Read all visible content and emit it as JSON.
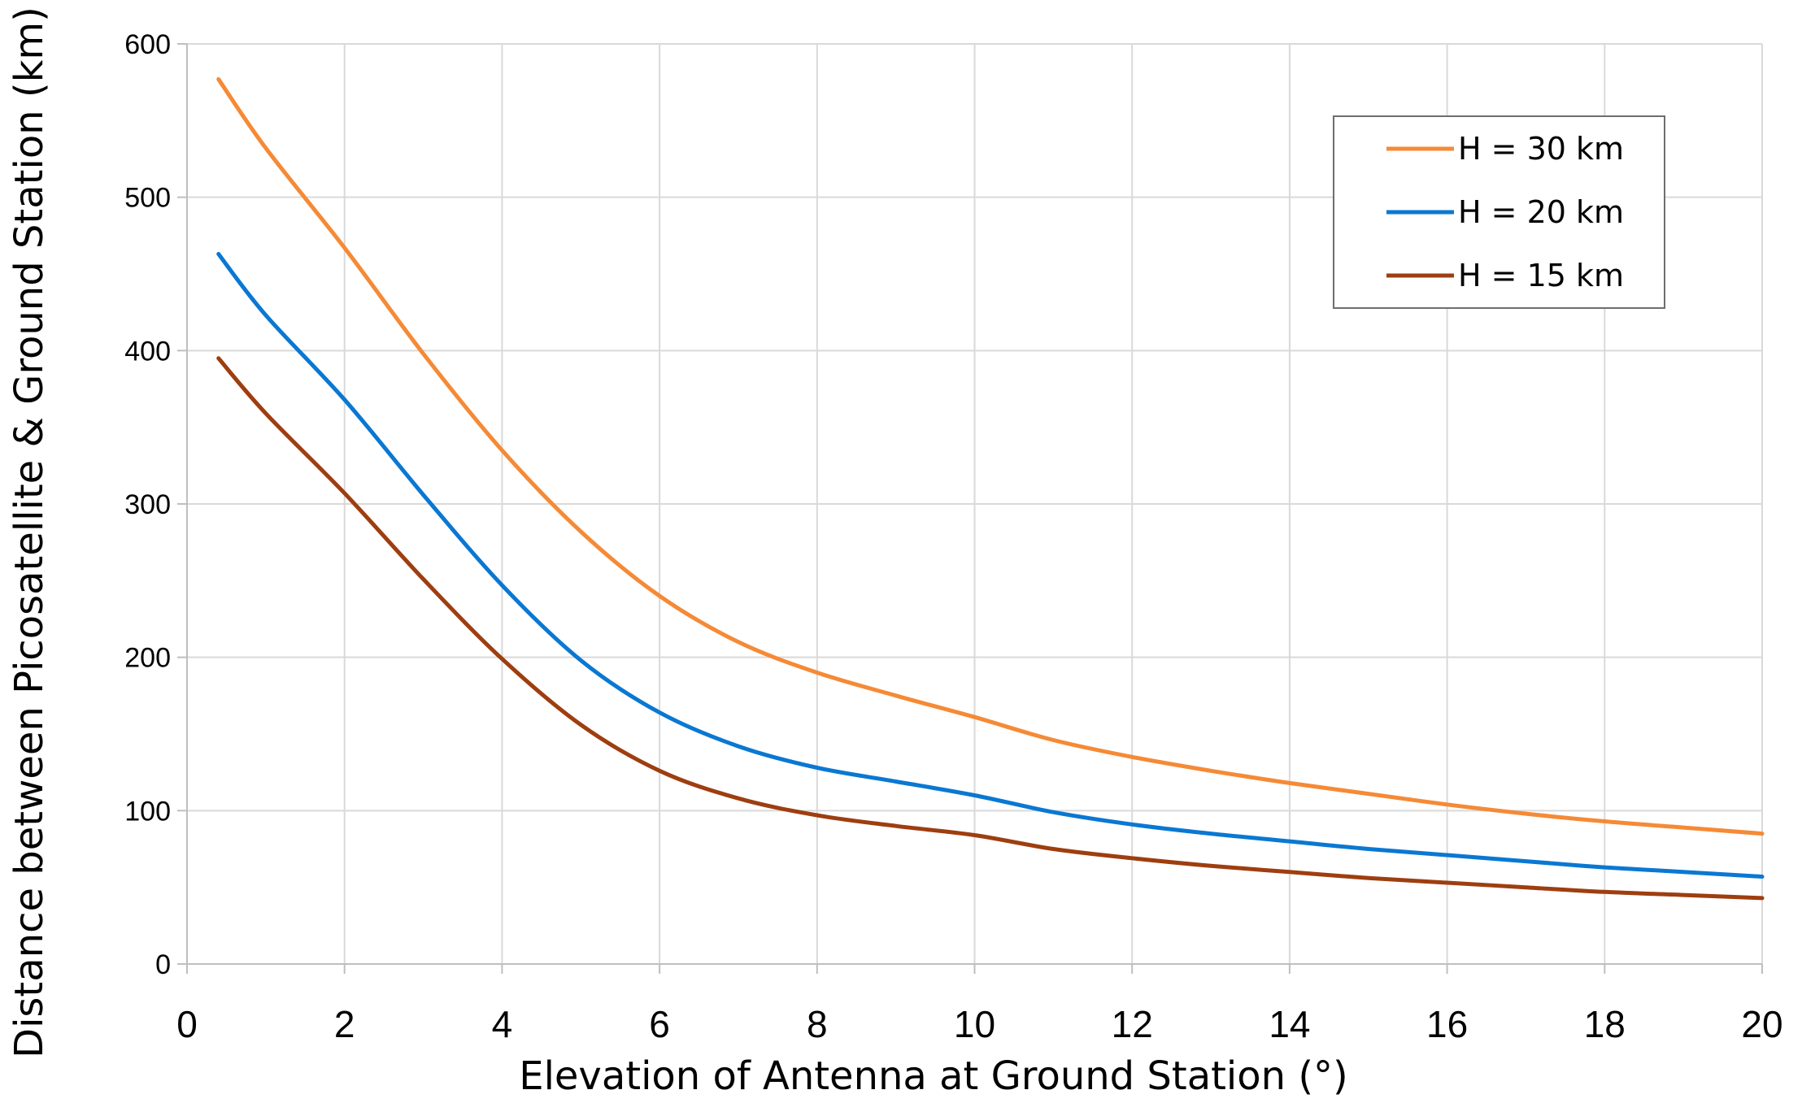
{
  "chart_data": {
    "type": "line",
    "title": "",
    "xlabel": "Elevation of Antenna at Ground Station (°)",
    "ylabel": "Distance between Picosatellite & Ground Station (km)",
    "xlim": [
      0,
      20
    ],
    "ylim": [
      0,
      600
    ],
    "xticks": [
      0,
      2,
      4,
      6,
      8,
      10,
      12,
      14,
      16,
      18,
      20
    ],
    "yticks": [
      0,
      100,
      200,
      300,
      400,
      500,
      600
    ],
    "grid": true,
    "legend_position": "top-right",
    "x": [
      0.4,
      1,
      2,
      3,
      4,
      5,
      6,
      7,
      8,
      9,
      10,
      11,
      12,
      13,
      14,
      15,
      16,
      17,
      18,
      19,
      20
    ],
    "series": [
      {
        "name": "H = 30 km",
        "color": "#f58a36",
        "values": [
          577,
          532,
          467,
          398,
          335,
          282,
          240,
          210,
          190,
          175,
          161,
          146,
          135,
          126,
          118,
          111,
          104,
          98,
          93,
          89,
          85
        ]
      },
      {
        "name": "H = 20 km",
        "color": "#0a78d2",
        "values": [
          463,
          423,
          368,
          306,
          247,
          198,
          164,
          142,
          128,
          119,
          110,
          99,
          91,
          85,
          80,
          75,
          71,
          67,
          63,
          60,
          57
        ]
      },
      {
        "name": "H = 15 km",
        "color": "#9e3e10",
        "values": [
          395,
          359,
          307,
          251,
          199,
          156,
          126,
          108,
          97,
          90,
          84,
          75,
          69,
          64,
          60,
          56,
          53,
          50,
          47,
          45,
          43
        ]
      }
    ]
  }
}
